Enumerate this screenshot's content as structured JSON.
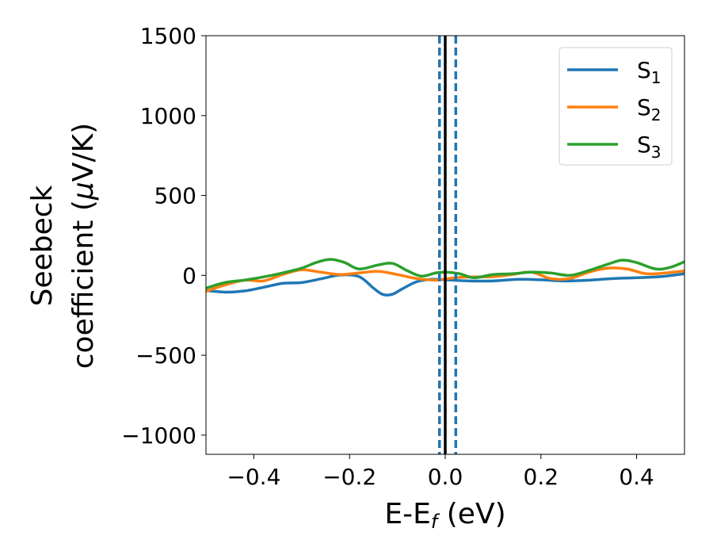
{
  "chart_data": {
    "type": "line",
    "xlabel_main": "E-E",
    "xlabel_sub": "f",
    "xlabel_unit": " (eV)",
    "ylabel_line1": "Seebeck",
    "ylabel_line2_prefix": "coefficient  (",
    "ylabel_mu": "μ",
    "ylabel_line2_suffix": "V/K)",
    "xlim": [
      -0.5,
      0.5
    ],
    "ylim": [
      -1120,
      1500
    ],
    "xticks": [
      -0.4,
      -0.2,
      0.0,
      0.2,
      0.4
    ],
    "xtick_labels": [
      "−0.4",
      "−0.2",
      "0.0",
      "0.2",
      "0.4"
    ],
    "yticks": [
      -1000,
      -500,
      0,
      500,
      1000,
      1500
    ],
    "ytick_labels": [
      "−1000",
      "−500",
      "0",
      "500",
      "1000",
      "1500"
    ],
    "grid": false,
    "legend_position": "top-right",
    "series": [
      {
        "name": "S",
        "subscript": "1",
        "color": "#1f77b4",
        "x": [
          -0.5,
          -0.46,
          -0.42,
          -0.38,
          -0.34,
          -0.3,
          -0.26,
          -0.22,
          -0.18,
          -0.15,
          -0.13,
          -0.11,
          -0.09,
          -0.06,
          -0.03,
          0.0,
          0.05,
          0.1,
          0.15,
          0.2,
          0.25,
          0.3,
          0.35,
          0.4,
          0.45,
          0.5
        ],
        "y": [
          -95,
          -105,
          -98,
          -75,
          -50,
          -45,
          -22,
          2,
          -8,
          -80,
          -120,
          -118,
          -85,
          -40,
          -25,
          -28,
          -35,
          -35,
          -25,
          -28,
          -35,
          -30,
          -20,
          -15,
          -8,
          10
        ]
      },
      {
        "name": "S",
        "subscript": "2",
        "color": "#ff7f0e",
        "x": [
          -0.5,
          -0.46,
          -0.42,
          -0.38,
          -0.34,
          -0.3,
          -0.26,
          -0.22,
          -0.18,
          -0.14,
          -0.1,
          -0.06,
          -0.02,
          0.02,
          0.06,
          0.1,
          0.14,
          0.18,
          0.22,
          0.26,
          0.3,
          0.34,
          0.38,
          0.42,
          0.46,
          0.5
        ],
        "y": [
          -100,
          -60,
          -30,
          -35,
          5,
          35,
          20,
          5,
          15,
          25,
          5,
          -20,
          -30,
          -15,
          -10,
          -8,
          5,
          20,
          -20,
          -20,
          20,
          45,
          40,
          10,
          15,
          28
        ]
      },
      {
        "name": "S",
        "subscript": "3",
        "color": "#2ca02c",
        "x": [
          -0.5,
          -0.46,
          -0.42,
          -0.38,
          -0.34,
          -0.3,
          -0.27,
          -0.24,
          -0.21,
          -0.18,
          -0.14,
          -0.11,
          -0.08,
          -0.05,
          -0.02,
          0.0,
          0.03,
          0.06,
          0.1,
          0.14,
          0.18,
          0.22,
          0.26,
          0.3,
          0.34,
          0.37,
          0.4,
          0.44,
          0.47,
          0.5
        ],
        "y": [
          -80,
          -45,
          -30,
          -10,
          15,
          45,
          80,
          100,
          80,
          40,
          65,
          75,
          30,
          -5,
          15,
          20,
          10,
          -15,
          5,
          10,
          20,
          15,
          0,
          30,
          70,
          95,
          80,
          40,
          50,
          85
        ]
      }
    ],
    "vlines": [
      {
        "x": 0.0,
        "style": "solid",
        "color": "#000000"
      },
      {
        "x": -0.012,
        "style": "dashed",
        "color": "#1f77b4"
      },
      {
        "x": 0.022,
        "style": "dashed",
        "color": "#1f77b4"
      }
    ]
  }
}
